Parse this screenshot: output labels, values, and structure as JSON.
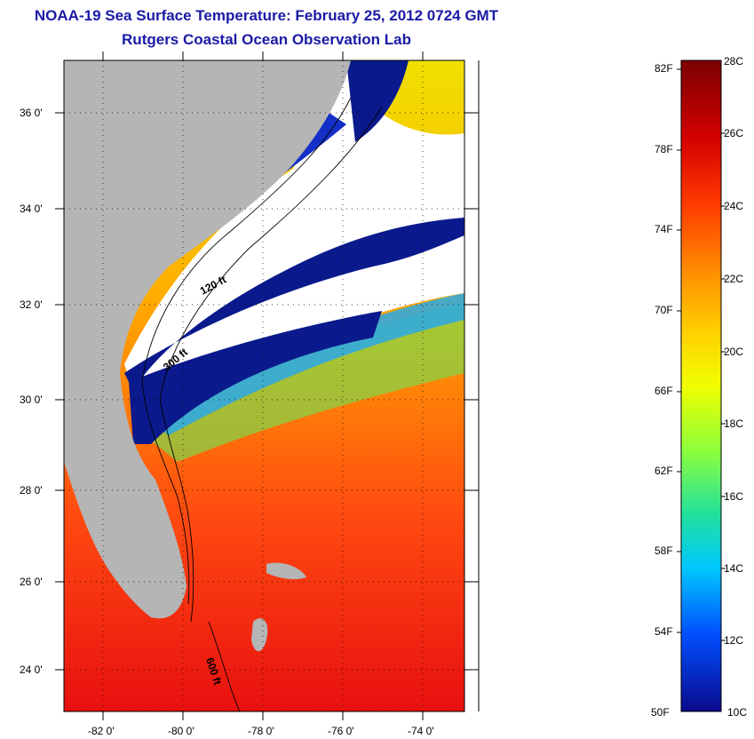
{
  "title": {
    "line1": "NOAA-19 Sea Surface Temperature:  February 25, 2012 0724 GMT",
    "line2": "Rutgers Coastal Ocean Observation Lab"
  },
  "map": {
    "lat_ticks": [
      "36 0'",
      "34 0'",
      "32 0'",
      "30 0'",
      "28 0'",
      "26 0'",
      "24 0'"
    ],
    "lon_ticks": [
      "-82 0'",
      "-80 0'",
      "-78 0'",
      "-76 0'",
      "-74 0'"
    ],
    "contour_labels": [
      "120 ft",
      "300 ft",
      "600 ft"
    ],
    "colors": {
      "land": "#b5b5b5",
      "cloud": "#ffffff",
      "cold": "#0a1a8c",
      "warm": "#e8321a"
    }
  },
  "colorbar": {
    "fahrenheit": [
      "82F",
      "78F",
      "74F",
      "70F",
      "66F",
      "62F",
      "58F",
      "54F",
      "50F"
    ],
    "celsius": [
      "28C",
      "26C",
      "24C",
      "22C",
      "20C",
      "18C",
      "16C",
      "14C",
      "12C",
      "10C"
    ]
  }
}
